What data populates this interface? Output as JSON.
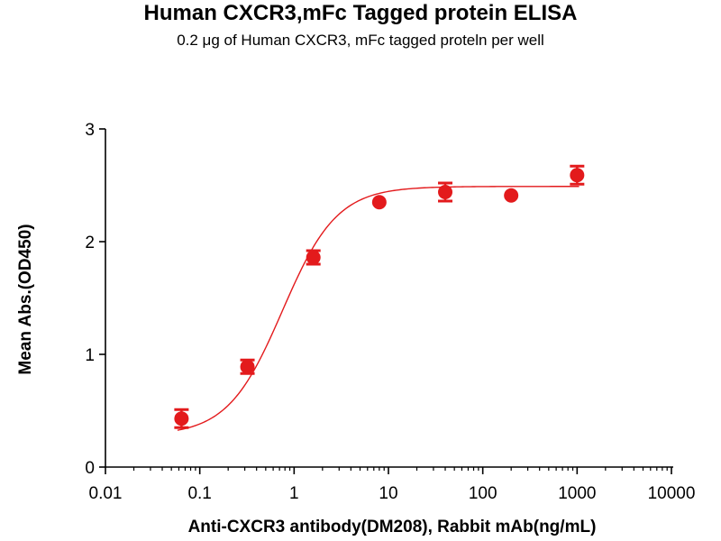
{
  "chart_data": {
    "type": "scatter",
    "title": "Human CXCR3,mFc Tagged protein ELISA",
    "subtitle": "0.2 μg of Human CXCR3, mFc tagged proteln per well",
    "xlabel": "Anti-CXCR3 antibody(DM208), Rabbit mAb(ng/mL)",
    "ylabel": "Mean Abs.(OD450)",
    "x_scale": "log",
    "xlim": [
      0.01,
      10000
    ],
    "ylim": [
      0,
      3
    ],
    "x_ticks": [
      "0.01",
      "0.1",
      "1",
      "10",
      "100",
      "1000",
      "10000"
    ],
    "y_ticks": [
      "0",
      "1",
      "2",
      "3"
    ],
    "grid": false,
    "color": "#e31a1c",
    "points": [
      {
        "x": 0.064,
        "y": 0.43,
        "err": 0.08
      },
      {
        "x": 0.32,
        "y": 0.89,
        "err": 0.06
      },
      {
        "x": 1.6,
        "y": 1.86,
        "err": 0.06
      },
      {
        "x": 8,
        "y": 2.35,
        "err": 0.0
      },
      {
        "x": 40,
        "y": 2.44,
        "err": 0.08
      },
      {
        "x": 200,
        "y": 2.41,
        "err": 0.0
      },
      {
        "x": 1000,
        "y": 2.59,
        "err": 0.08
      }
    ],
    "fit": {
      "bottom": 0.28,
      "top": 2.49,
      "ec50": 0.75,
      "hill": 1.5
    }
  }
}
